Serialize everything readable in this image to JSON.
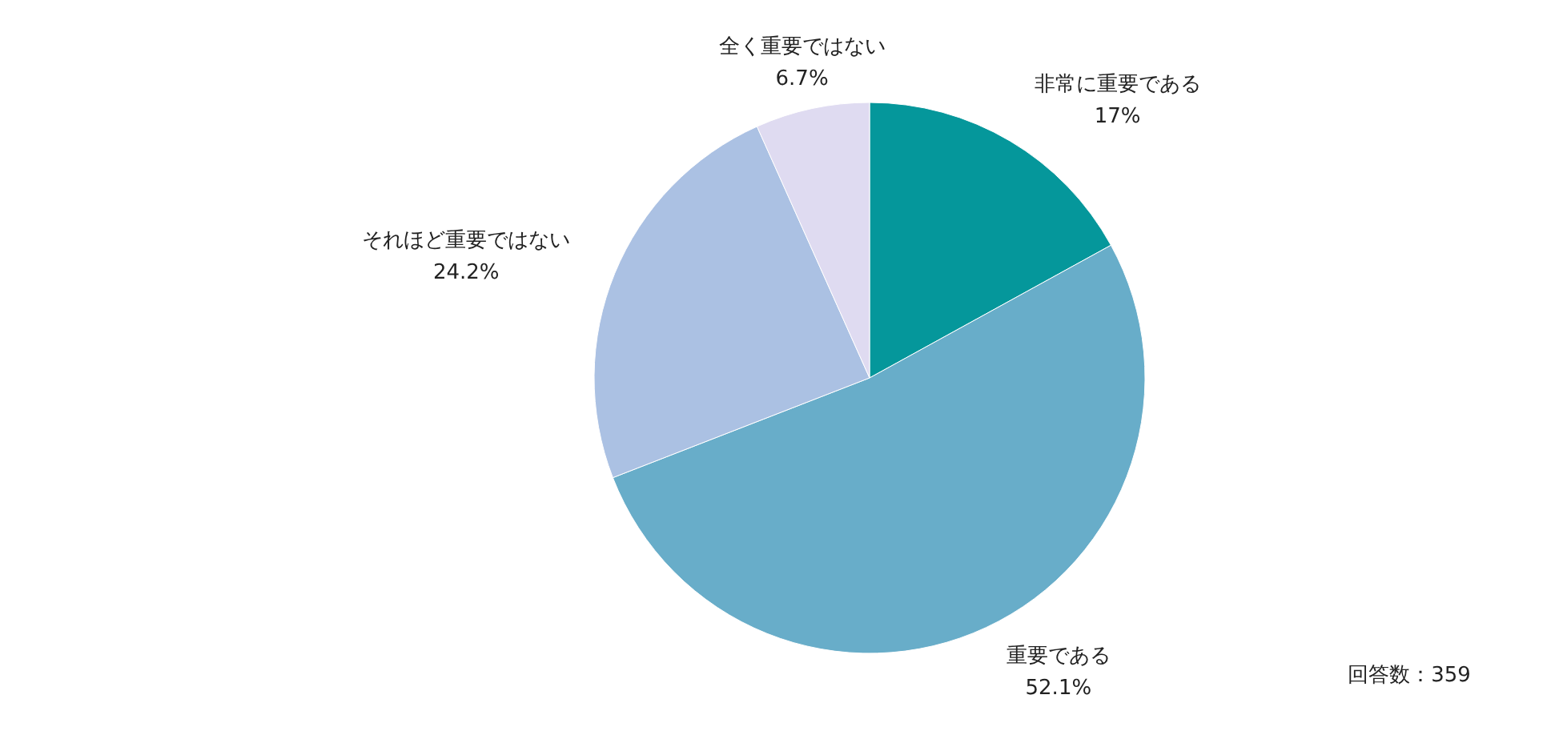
{
  "chart_data": {
    "type": "pie",
    "categories": [
      "非常に重要である",
      "重要である",
      "それほど重要ではない",
      "全く重要ではない"
    ],
    "values": [
      17,
      52.1,
      24.2,
      6.7
    ],
    "value_labels": [
      "17%",
      "52.1%",
      "24.2%",
      "6.7%"
    ],
    "colors": [
      "#05979b",
      "#68adc9",
      "#abc1e3",
      "#dfdbf1"
    ],
    "annotations": [
      "回答数：359"
    ]
  }
}
